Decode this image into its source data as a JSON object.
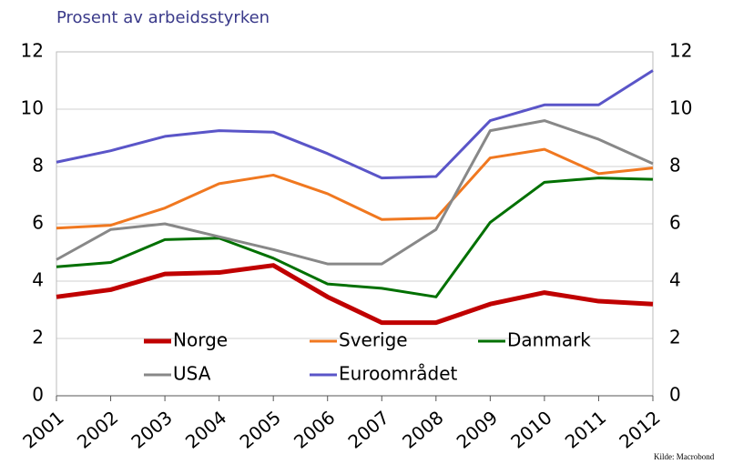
{
  "chart_data": {
    "type": "line",
    "subtitle": "Prosent av arbeidsstyrken",
    "source": "Kilde: Macrobond",
    "categories": [
      "2001",
      "2002",
      "2003",
      "2004",
      "2005",
      "2006",
      "2007",
      "2008",
      "2009",
      "2010",
      "2011",
      "2012"
    ],
    "series": [
      {
        "name": "Norge",
        "color": "#c00000",
        "values": [
          3.45,
          3.7,
          4.25,
          4.3,
          4.55,
          3.45,
          2.55,
          2.55,
          3.2,
          3.6,
          3.3,
          3.2
        ]
      },
      {
        "name": "Sverige",
        "color": "#f07820",
        "values": [
          5.85,
          5.95,
          6.55,
          7.4,
          7.7,
          7.05,
          6.15,
          6.2,
          8.3,
          8.6,
          7.75,
          7.95
        ]
      },
      {
        "name": "Danmark",
        "color": "#007000",
        "values": [
          4.5,
          4.65,
          5.45,
          5.5,
          4.8,
          3.9,
          3.75,
          3.45,
          6.05,
          7.45,
          7.6,
          7.55
        ]
      },
      {
        "name": "USA",
        "color": "#888888",
        "values": [
          4.75,
          5.8,
          6.0,
          5.55,
          5.1,
          4.6,
          4.6,
          5.8,
          9.25,
          9.6,
          8.95,
          8.1
        ]
      },
      {
        "name": "Euroområdet",
        "color": "#5a55c8",
        "values": [
          8.15,
          8.55,
          9.05,
          9.25,
          9.2,
          8.45,
          7.6,
          7.65,
          9.6,
          10.15,
          10.15,
          11.35
        ]
      }
    ],
    "ylim": [
      0,
      12
    ],
    "yticks": [
      0,
      2,
      4,
      6,
      8,
      10,
      12
    ],
    "y2lim": [
      0,
      12
    ],
    "y2ticks": [
      0,
      2,
      4,
      6,
      8,
      10,
      12
    ],
    "grid": true
  }
}
